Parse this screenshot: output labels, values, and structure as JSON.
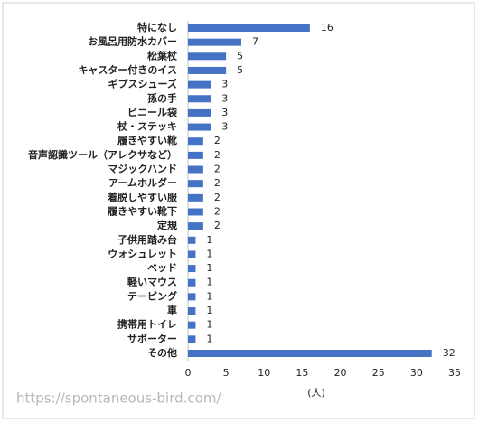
{
  "chart_data": {
    "type": "bar",
    "orientation": "horizontal",
    "categories": [
      "特になし",
      "お風呂用防水カバー",
      "松葉杖",
      "キャスター付きのイス",
      "ギプスシューズ",
      "孫の手",
      "ビニール袋",
      "杖・ステッキ",
      "履きやすい靴",
      "音声認識ツール（アレクサなど）",
      "マジックハンド",
      "アームホルダー",
      "着脱しやすい服",
      "履きやすい靴下",
      "定規",
      "子供用踏み台",
      "ウォシュレット",
      "ベッド",
      "軽いマウス",
      "テーピング",
      "車",
      "携帯用トイレ",
      "サポーター",
      "その他"
    ],
    "values": [
      16,
      7,
      5,
      5,
      3,
      3,
      3,
      3,
      2,
      2,
      2,
      2,
      2,
      2,
      2,
      1,
      1,
      1,
      1,
      1,
      1,
      1,
      1,
      32
    ],
    "color": "#4472c4",
    "x_label": "(人)",
    "xlim": [
      0,
      35
    ],
    "xticks": [
      0,
      5,
      10,
      15,
      20,
      25,
      30,
      35
    ],
    "grid": false,
    "watermark": "https://spontaneous-bird.com/"
  }
}
